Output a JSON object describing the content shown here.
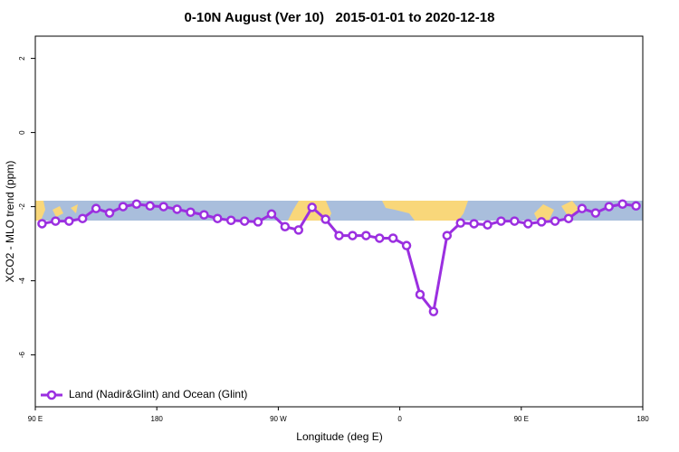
{
  "chart_data": {
    "type": "line",
    "title": "0-10N August (Ver 10)   2015-01-01 to 2020-12-18",
    "x_label": "Longitude (deg E)",
    "y_label": "XCO2 - MLO trend (ppm)",
    "x": [
      95,
      105,
      115,
      125,
      135,
      145,
      155,
      165,
      175,
      185,
      195,
      205,
      215,
      225,
      235,
      245,
      255,
      265,
      275,
      285,
      295,
      305,
      315,
      325,
      335,
      345,
      355,
      365,
      375,
      385,
      395,
      405,
      415,
      425,
      435,
      445,
      455,
      465,
      475,
      485,
      495,
      505,
      515,
      525,
      535
    ],
    "series": [
      {
        "name": "Land (Nadir&Glint) and Ocean (Glint)",
        "color": "#9b2fe0",
        "values": [
          -2.46,
          -2.39,
          -2.39,
          -2.32,
          -2.05,
          -2.17,
          -2.0,
          -1.93,
          -1.98,
          -2.0,
          -2.07,
          -2.15,
          -2.22,
          -2.32,
          -2.37,
          -2.39,
          -2.41,
          -2.2,
          -2.54,
          -2.63,
          -2.02,
          -2.34,
          -2.78,
          -2.78,
          -2.78,
          -2.85,
          -2.85,
          -3.05,
          -4.37,
          -4.83,
          -2.78,
          -2.44,
          -2.46,
          -2.49,
          -2.39,
          -2.39,
          -2.46,
          -2.41,
          -2.39,
          -2.32,
          -2.05,
          -2.17,
          -2.0,
          -1.93,
          -1.98
        ]
      }
    ],
    "xlim": [
      90,
      540
    ],
    "xticks": [
      {
        "value": 90,
        "label": "90 E"
      },
      {
        "value": 180,
        "label": "180"
      },
      {
        "value": 270,
        "label": "90 W"
      },
      {
        "value": 360,
        "label": "0"
      },
      {
        "value": 450,
        "label": "90 E"
      },
      {
        "value": 540,
        "label": "180"
      }
    ],
    "ylim": [
      -7.4,
      2.6
    ],
    "yticks": [
      -6,
      -4,
      -2,
      0,
      2
    ],
    "legend": "bottomleft"
  }
}
